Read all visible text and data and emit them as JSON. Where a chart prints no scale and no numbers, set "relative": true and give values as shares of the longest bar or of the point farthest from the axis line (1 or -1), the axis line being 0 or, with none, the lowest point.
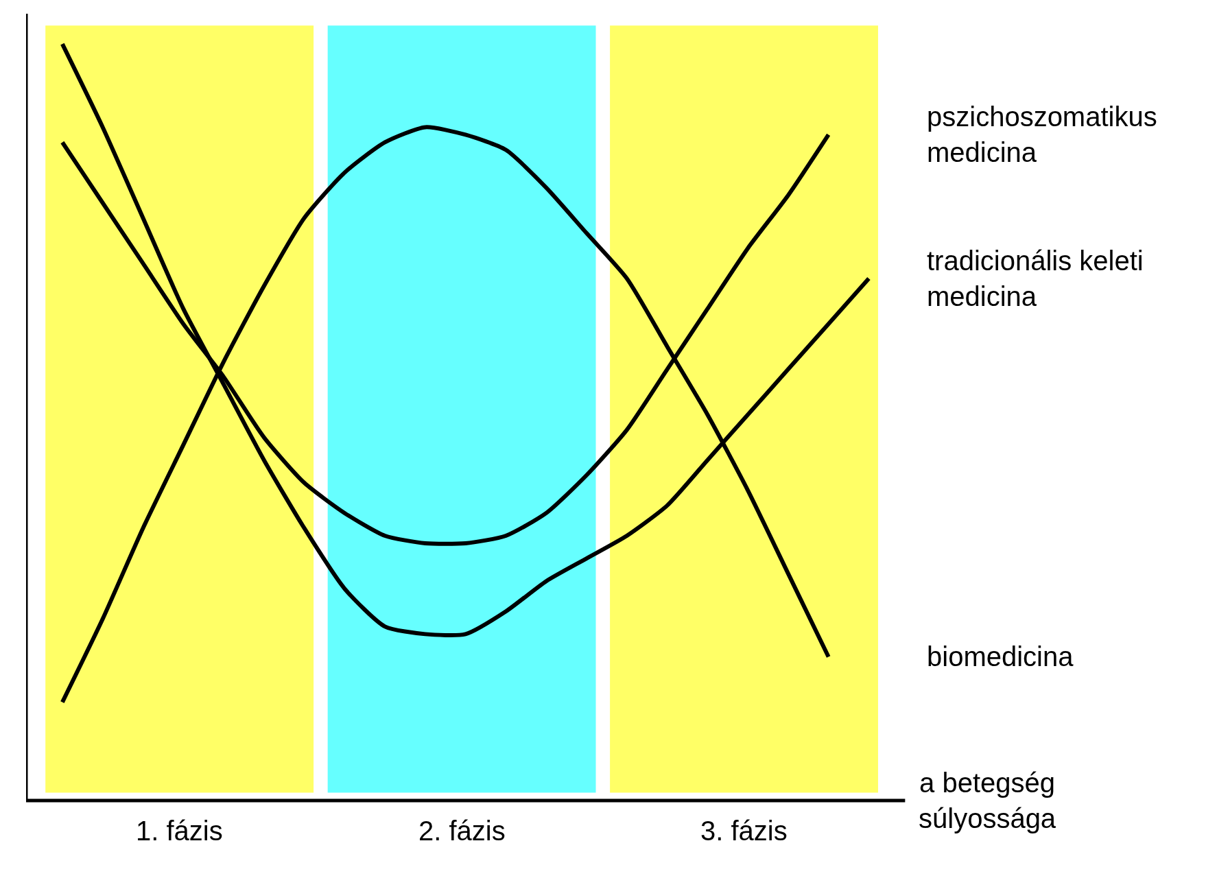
{
  "chart_data": {
    "type": "line",
    "relative": true,
    "xlabel": "a betegség súlyossága",
    "grid": false,
    "marker": "none",
    "line_style": "solid",
    "categories": [
      null,
      null,
      null,
      null,
      null,
      null,
      null,
      null,
      null,
      null,
      null,
      null,
      null,
      null,
      null,
      null,
      null,
      null,
      null,
      null,
      null
    ],
    "series": [
      {
        "name": "pszichoszomatikus medicina",
        "color": "#000000",
        "values": [
          0.87,
          0.79,
          0.71,
          0.63,
          0.56,
          0.48,
          0.42,
          0.38,
          0.35,
          0.34,
          0.34,
          0.35,
          0.38,
          0.43,
          0.49,
          0.57,
          0.65,
          0.73,
          0.8,
          0.88,
          null
        ]
      },
      {
        "name": "tradicionális keleti medicina",
        "color": "#000000",
        "values": [
          1.0,
          0.89,
          0.77,
          0.65,
          0.55,
          0.45,
          0.36,
          0.28,
          0.23,
          0.22,
          0.22,
          0.25,
          0.29,
          0.32,
          0.35,
          0.39,
          0.45,
          0.51,
          0.57,
          0.63,
          0.69
        ]
      },
      {
        "name": "biomedicina",
        "color": "#000000",
        "values": [
          0.13,
          0.24,
          0.36,
          0.47,
          0.58,
          0.68,
          0.77,
          0.83,
          0.87,
          0.89,
          0.88,
          0.86,
          0.81,
          0.75,
          0.69,
          0.6,
          0.51,
          0.41,
          0.3,
          0.19,
          null
        ]
      }
    ],
    "annotations": [
      "1. fázis",
      "2. fázis",
      "3. fázis"
    ]
  }
}
